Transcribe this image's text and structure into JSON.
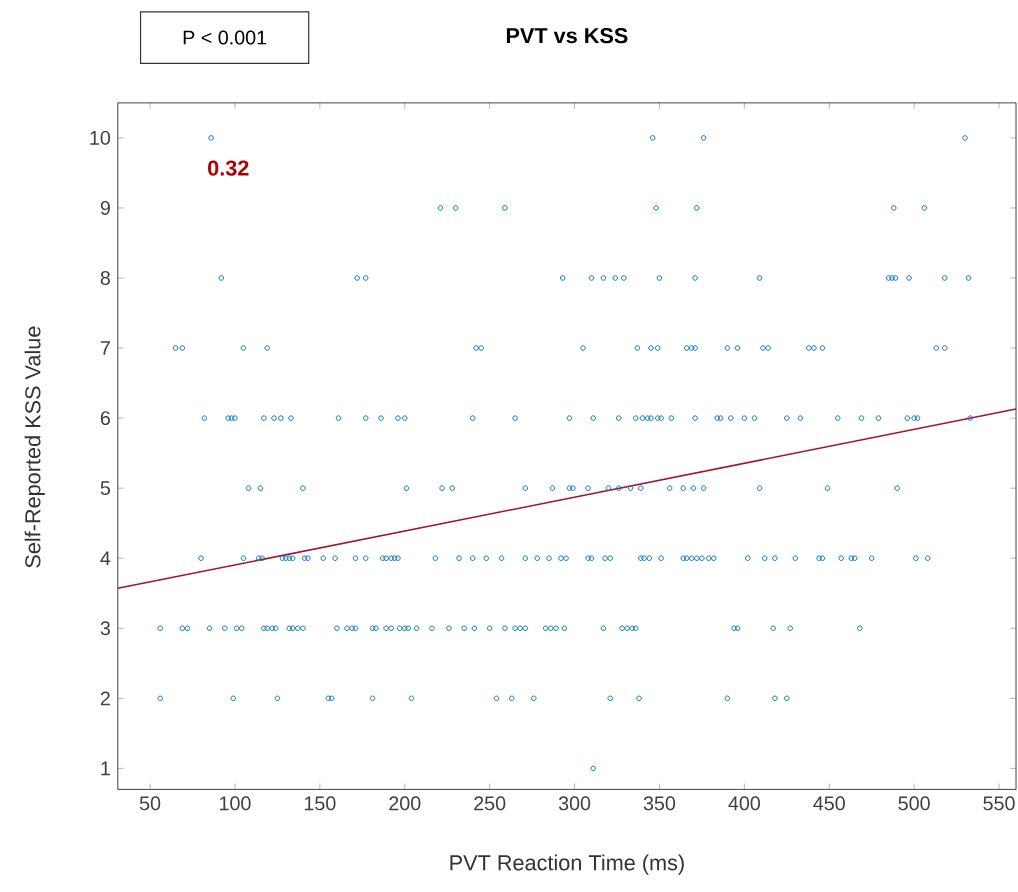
{
  "chart_data": {
    "type": "scatter",
    "title": "PVT vs KSS",
    "xlabel": "PVT Reaction Time (ms)",
    "ylabel": "Self-Reported KSS Value",
    "annotations": [
      "P < 0.001",
      "0.32"
    ],
    "xlim": [
      31,
      560
    ],
    "ylim": [
      0.7,
      10.5
    ],
    "xticks": [
      50,
      100,
      150,
      200,
      250,
      300,
      350,
      400,
      450,
      500,
      550
    ],
    "yticks": [
      1,
      2,
      3,
      4,
      5,
      6,
      7,
      8,
      9,
      10
    ],
    "marker": "circle",
    "series": [
      {
        "color": "#0072bd",
        "x": [
          86,
          346,
          376,
          530,
          221,
          230,
          259,
          348,
          372,
          488,
          506,
          92,
          172,
          177,
          293,
          310,
          317,
          324,
          329,
          350,
          371,
          409,
          485,
          487,
          489,
          497,
          518,
          532,
          65,
          69,
          105,
          119,
          242,
          245,
          305,
          337,
          345,
          349,
          366,
          369,
          371,
          390,
          396,
          411,
          414,
          438,
          441,
          446,
          513,
          518,
          82,
          96,
          98,
          100,
          117,
          123,
          127,
          133,
          161,
          177,
          186,
          196,
          200,
          240,
          265,
          297,
          311,
          326,
          336,
          340,
          343,
          345,
          349,
          351,
          357,
          371,
          384,
          386,
          392,
          400,
          406,
          425,
          433,
          455,
          469,
          479,
          496,
          500,
          502,
          533,
          108,
          115,
          140,
          201,
          222,
          228,
          271,
          287,
          297,
          299,
          308,
          320,
          326,
          333,
          339,
          356,
          364,
          370,
          376,
          409,
          449,
          490,
          80,
          105,
          114,
          116,
          128,
          130,
          132,
          134,
          141,
          143,
          152,
          159,
          171,
          177,
          187,
          189,
          192,
          194,
          196,
          218,
          232,
          240,
          248,
          257,
          271,
          278,
          285,
          292,
          295,
          308,
          310,
          318,
          321,
          339,
          341,
          344,
          351,
          364,
          366,
          369,
          372,
          375,
          379,
          382,
          402,
          412,
          418,
          430,
          444,
          446,
          457,
          463,
          465,
          475,
          501,
          508,
          56,
          69,
          72,
          85,
          94,
          101,
          104,
          117,
          119,
          122,
          124,
          132,
          134,
          137,
          140,
          160,
          166,
          169,
          171,
          181,
          183,
          189,
          192,
          197,
          200,
          202,
          207,
          216,
          226,
          235,
          241,
          250,
          259,
          265,
          268,
          271,
          283,
          286,
          289,
          294,
          317,
          328,
          331,
          334,
          336,
          394,
          396,
          417,
          427,
          468,
          56,
          99,
          125,
          155,
          157,
          181,
          204,
          254,
          263,
          276,
          321,
          338,
          390,
          418,
          425,
          311
        ],
        "values": [
          10,
          10,
          10,
          10,
          9,
          9,
          9,
          9,
          9,
          9,
          9,
          8,
          8,
          8,
          8,
          8,
          8,
          8,
          8,
          8,
          8,
          8,
          8,
          8,
          8,
          8,
          8,
          8,
          7,
          7,
          7,
          7,
          7,
          7,
          7,
          7,
          7,
          7,
          7,
          7,
          7,
          7,
          7,
          7,
          7,
          7,
          7,
          7,
          7,
          7,
          6,
          6,
          6,
          6,
          6,
          6,
          6,
          6,
          6,
          6,
          6,
          6,
          6,
          6,
          6,
          6,
          6,
          6,
          6,
          6,
          6,
          6,
          6,
          6,
          6,
          6,
          6,
          6,
          6,
          6,
          6,
          6,
          6,
          6,
          6,
          6,
          6,
          6,
          6,
          6,
          5,
          5,
          5,
          5,
          5,
          5,
          5,
          5,
          5,
          5,
          5,
          5,
          5,
          5,
          5,
          5,
          5,
          5,
          5,
          5,
          5,
          5,
          4,
          4,
          4,
          4,
          4,
          4,
          4,
          4,
          4,
          4,
          4,
          4,
          4,
          4,
          4,
          4,
          4,
          4,
          4,
          4,
          4,
          4,
          4,
          4,
          4,
          4,
          4,
          4,
          4,
          4,
          4,
          4,
          4,
          4,
          4,
          4,
          4,
          4,
          4,
          4,
          4,
          4,
          4,
          4,
          4,
          4,
          4,
          4,
          4,
          4,
          4,
          4,
          4,
          4,
          4,
          4,
          3,
          3,
          3,
          3,
          3,
          3,
          3,
          3,
          3,
          3,
          3,
          3,
          3,
          3,
          3,
          3,
          3,
          3,
          3,
          3,
          3,
          3,
          3,
          3,
          3,
          3,
          3,
          3,
          3,
          3,
          3,
          3,
          3,
          3,
          3,
          3,
          3,
          3,
          3,
          3,
          3,
          3,
          3,
          3,
          3,
          3,
          3,
          3,
          3,
          3,
          2,
          2,
          2,
          2,
          2,
          2,
          2,
          2,
          2,
          2,
          2,
          2,
          2,
          2,
          2,
          1
        ]
      },
      {
        "type": "line",
        "color": "#a2142f",
        "marker": "none",
        "x": [
          31,
          560
        ],
        "values": [
          3.57,
          6.13
        ]
      }
    ]
  }
}
